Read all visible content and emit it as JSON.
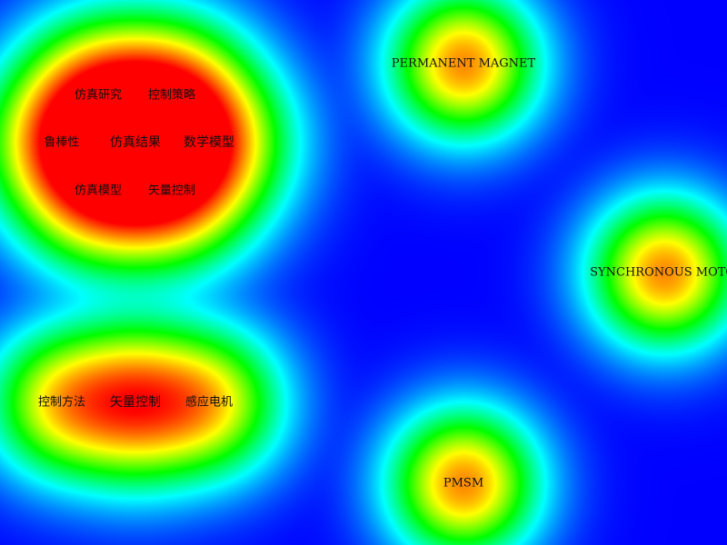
{
  "colors": {
    "background": "#0000ff",
    "ramp": [
      "#0000ff",
      "#00ffff",
      "#00ff00",
      "#ffff00",
      "#ff0000"
    ]
  },
  "clusters": [
    {
      "name": "cluster-1",
      "keywords": [
        {
          "label": "仿真研究",
          "weight": 0.55
        },
        {
          "label": "控制策略",
          "weight": 0.55
        },
        {
          "label": "鲁棒性",
          "weight": 0.55
        },
        {
          "label": "仿真结果",
          "weight": 0.85
        },
        {
          "label": "数学模型",
          "weight": 0.55
        },
        {
          "label": "仿真模型",
          "weight": 0.55
        },
        {
          "label": "矢量控制",
          "weight": 0.55
        }
      ]
    },
    {
      "name": "cluster-2",
      "keywords": [
        {
          "label": "PERMANENT MAGNET",
          "weight": 0.7
        }
      ]
    },
    {
      "name": "cluster-3",
      "keywords": [
        {
          "label": "SYNCHRONOUS MOTOR",
          "weight": 0.7
        }
      ]
    },
    {
      "name": "cluster-4",
      "keywords": [
        {
          "label": "控制方法",
          "weight": 0.5
        },
        {
          "label": "矢量控制",
          "weight": 0.75
        },
        {
          "label": "感应电机",
          "weight": 0.5
        }
      ]
    },
    {
      "name": "cluster-5",
      "keywords": [
        {
          "label": "PMSM",
          "weight": 0.7
        }
      ]
    }
  ]
}
